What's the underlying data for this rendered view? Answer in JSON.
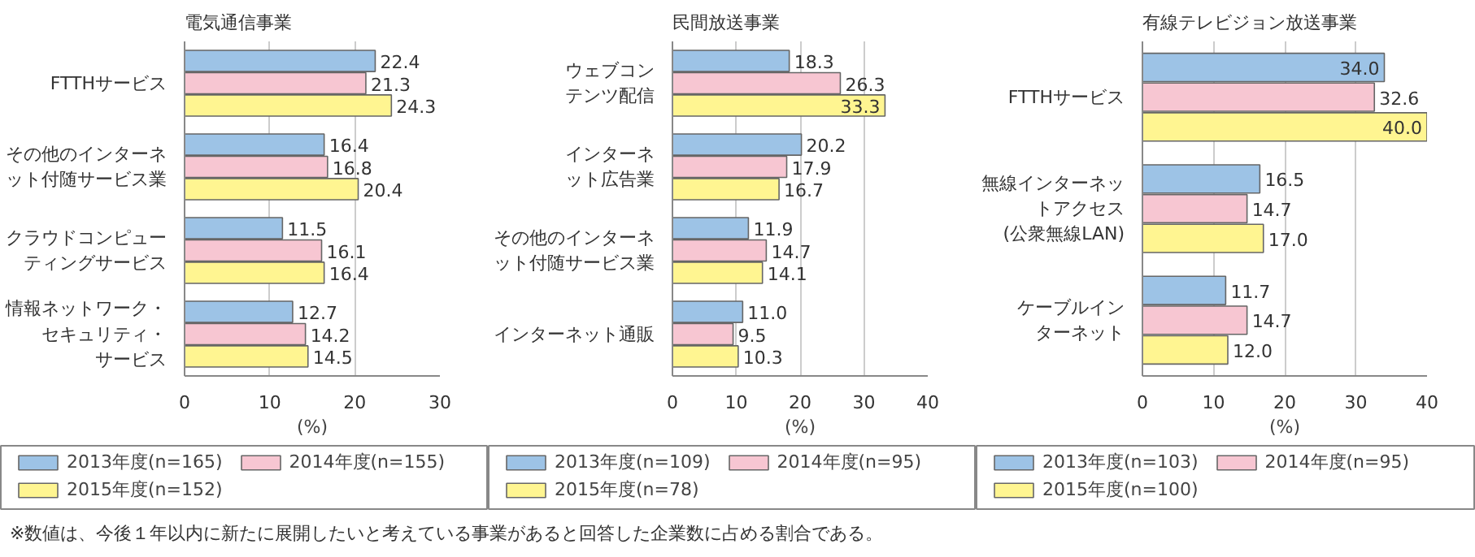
{
  "chart_data": [
    {
      "type": "bar",
      "orientation": "horizontal",
      "title": "電気通信事業",
      "xlabel": "(%)",
      "categories": [
        "FTTHサービス",
        "その他のインターネット付随サービス業",
        "クラウドコンピューティングサービス",
        "情報ネットワーク・セキュリティ・サービス"
      ],
      "series": [
        {
          "name": "2013年度(n=165)",
          "color": "#9dc3e6",
          "values": [
            22.4,
            16.4,
            11.5,
            12.7
          ],
          "value_labels": [
            "22.4",
            "16.4",
            "11.5",
            "12.7"
          ]
        },
        {
          "name": "2014年度(n=155)",
          "color": "#f7c6d2",
          "values": [
            21.3,
            16.8,
            16.1,
            14.2
          ],
          "value_labels": [
            "21.3",
            "16.8",
            "16.1",
            "14.2"
          ]
        },
        {
          "name": "2015年度(n=152)",
          "color": "#fff591",
          "values": [
            24.3,
            20.4,
            16.4,
            14.5
          ],
          "value_labels": [
            "24.3",
            "20.4",
            "16.4",
            "14.5"
          ]
        }
      ],
      "xlim": [
        0,
        30
      ],
      "xticks": [
        0,
        10,
        20,
        30
      ],
      "grid": "x",
      "legend": "bottom",
      "annotations": [
        "※数値は、今後１年以内に新たに展開したいと考えている事業があると回答した企業数に占める割合である。"
      ]
    },
    {
      "type": "bar",
      "orientation": "horizontal",
      "title": "民間放送事業",
      "xlabel": "(%)",
      "categories": [
        "ウェブコンテンツ配信",
        "インターネット広告業",
        "その他のインターネット付随サービス業",
        "インターネット通販"
      ],
      "series": [
        {
          "name": "2013年度(n=109)",
          "color": "#9dc3e6",
          "values": [
            18.3,
            20.2,
            11.9,
            11.0
          ],
          "value_labels": [
            "18.3",
            "20.2",
            "11.9",
            "11.0"
          ]
        },
        {
          "name": "2014年度(n=95)",
          "color": "#f7c6d2",
          "values": [
            26.3,
            17.9,
            14.7,
            9.5
          ],
          "value_labels": [
            "26.3",
            "17.9",
            "14.7",
            "9.5"
          ]
        },
        {
          "name": "2015年度(n=78)",
          "color": "#fff591",
          "values": [
            33.3,
            16.7,
            14.1,
            10.3
          ],
          "value_labels": [
            "33.3",
            "16.7",
            "14.1",
            "10.3"
          ]
        }
      ],
      "xlim": [
        0,
        40
      ],
      "xticks": [
        0,
        10,
        20,
        30,
        40
      ],
      "grid": "x",
      "legend": "bottom"
    },
    {
      "type": "bar",
      "orientation": "horizontal",
      "title": "有線テレビジョン放送事業",
      "xlabel": "(%)",
      "categories": [
        "FTTHサービス",
        "無線インターネットアクセス(公衆無線LAN)",
        "ケーブルインターネット"
      ],
      "series": [
        {
          "name": "2013年度(n=103)",
          "color": "#9dc3e6",
          "values": [
            34.0,
            16.5,
            11.7
          ],
          "value_labels": [
            "34.0",
            "16.5",
            "11.7"
          ]
        },
        {
          "name": "2014年度(n=95)",
          "color": "#f7c6d2",
          "values": [
            32.6,
            14.7,
            14.7
          ],
          "value_labels": [
            "32.6",
            "14.7",
            "14.7"
          ]
        },
        {
          "name": "2015年度(n=100)",
          "color": "#fff591",
          "values": [
            40.0,
            17.0,
            12.0
          ],
          "value_labels": [
            "40.0",
            "17.0",
            "12.0"
          ]
        }
      ],
      "xlim": [
        0,
        40
      ],
      "xticks": [
        0,
        10,
        20,
        30,
        40
      ],
      "grid": "x",
      "legend": "bottom"
    }
  ]
}
